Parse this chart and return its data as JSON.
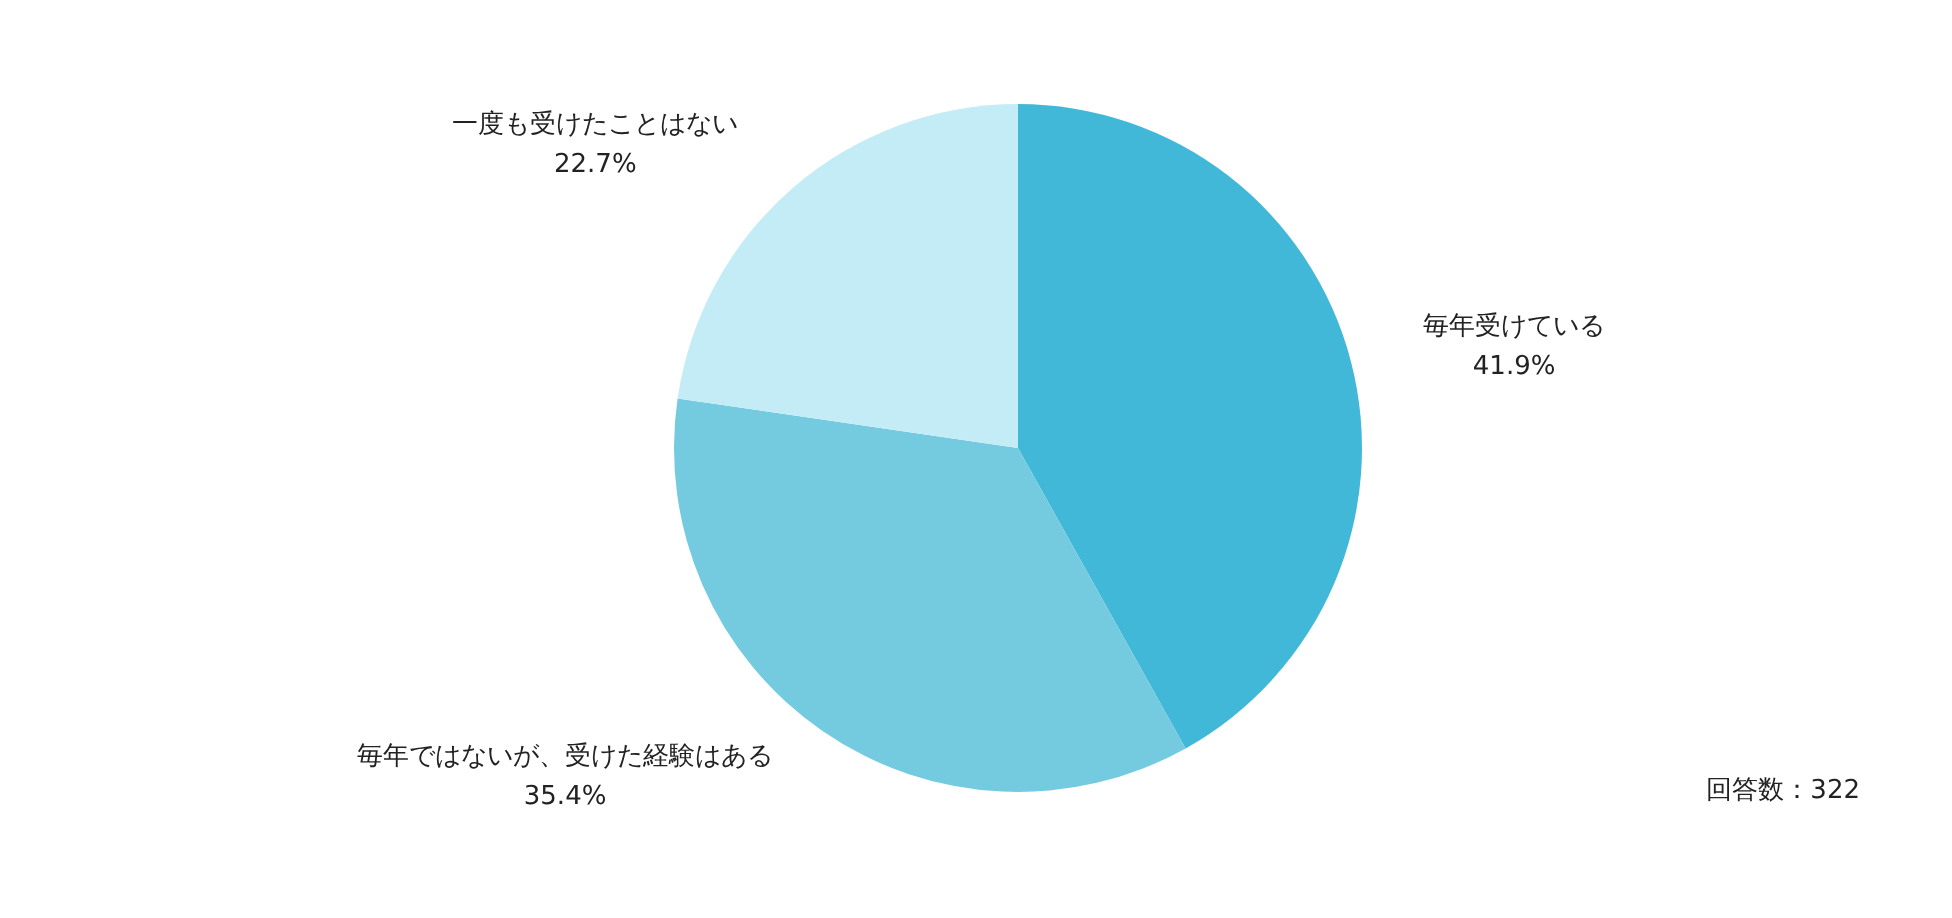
{
  "chart_data": {
    "type": "pie",
    "categories": [
      "毎年受けている",
      "毎年ではないが、受けた経験はある",
      "一度も受けたことはない"
    ],
    "values": [
      41.9,
      35.4,
      22.7
    ],
    "colors": [
      "#42b8d8",
      "#74cbe0",
      "#c4ecf6"
    ],
    "value_labels": [
      "41.9%",
      "35.4%",
      "22.7%"
    ],
    "annotations": [
      "回答数：322"
    ]
  }
}
